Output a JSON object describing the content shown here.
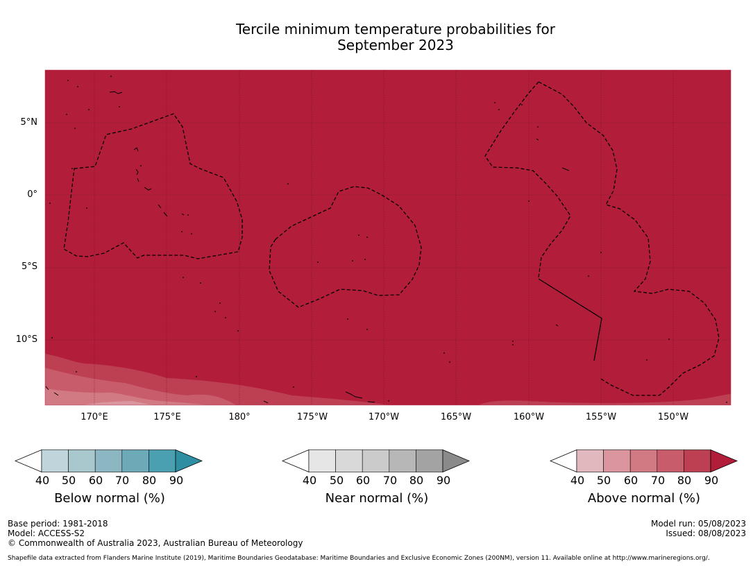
{
  "title": {
    "line1": "Tercile minimum temperature probabilities for",
    "line2": "September 2023"
  },
  "map": {
    "background_color": "#B21E3A",
    "lat_labels": [
      "5°N",
      "0°",
      "5°S",
      "10°S"
    ],
    "lon_labels": [
      "170°E",
      "175°E",
      "180°",
      "175°W",
      "170°W",
      "165°W",
      "160°W",
      "155°W",
      "150°W"
    ]
  },
  "colorbars": [
    {
      "label": "Below normal (%)",
      "ticks": [
        "40",
        "50",
        "60",
        "70",
        "80",
        "90"
      ],
      "colors": [
        "#BFD5DB",
        "#A8C8CE",
        "#8CB7C2",
        "#6DAAB8",
        "#4A9FB1",
        "#2F8FA2"
      ]
    },
    {
      "label": "Near normal (%)",
      "ticks": [
        "40",
        "50",
        "60",
        "70",
        "80",
        "90"
      ],
      "colors": [
        "#E6E6E6",
        "#D9D9D9",
        "#CBCBCB",
        "#B7B7B7",
        "#A3A3A3",
        "#8A8A8A"
      ]
    },
    {
      "label": "Above normal (%)",
      "ticks": [
        "40",
        "50",
        "60",
        "70",
        "80",
        "90"
      ],
      "colors": [
        "#E2B8BF",
        "#DA959E",
        "#D27A84",
        "#C85C6A",
        "#BC3F52",
        "#B21E3A"
      ]
    }
  ],
  "footer": {
    "base_period": "Base period: 1981-2018",
    "model": "Model: ACCESS-S2",
    "copyright": "© Commonwealth of Australia 2023, Australian Bureau of Meteorology",
    "model_run": "Model run: 05/08/2023",
    "issued": "Issued: 08/08/2023",
    "shapefile_note": "Shapefile data extracted from Flanders Marine Institute (2019), Maritime Boundaries Geodatabase: Maritime Boundaries and Exclusive Economic Zones (200NM), version 11. Available online at http://www.marineregions.org/."
  }
}
